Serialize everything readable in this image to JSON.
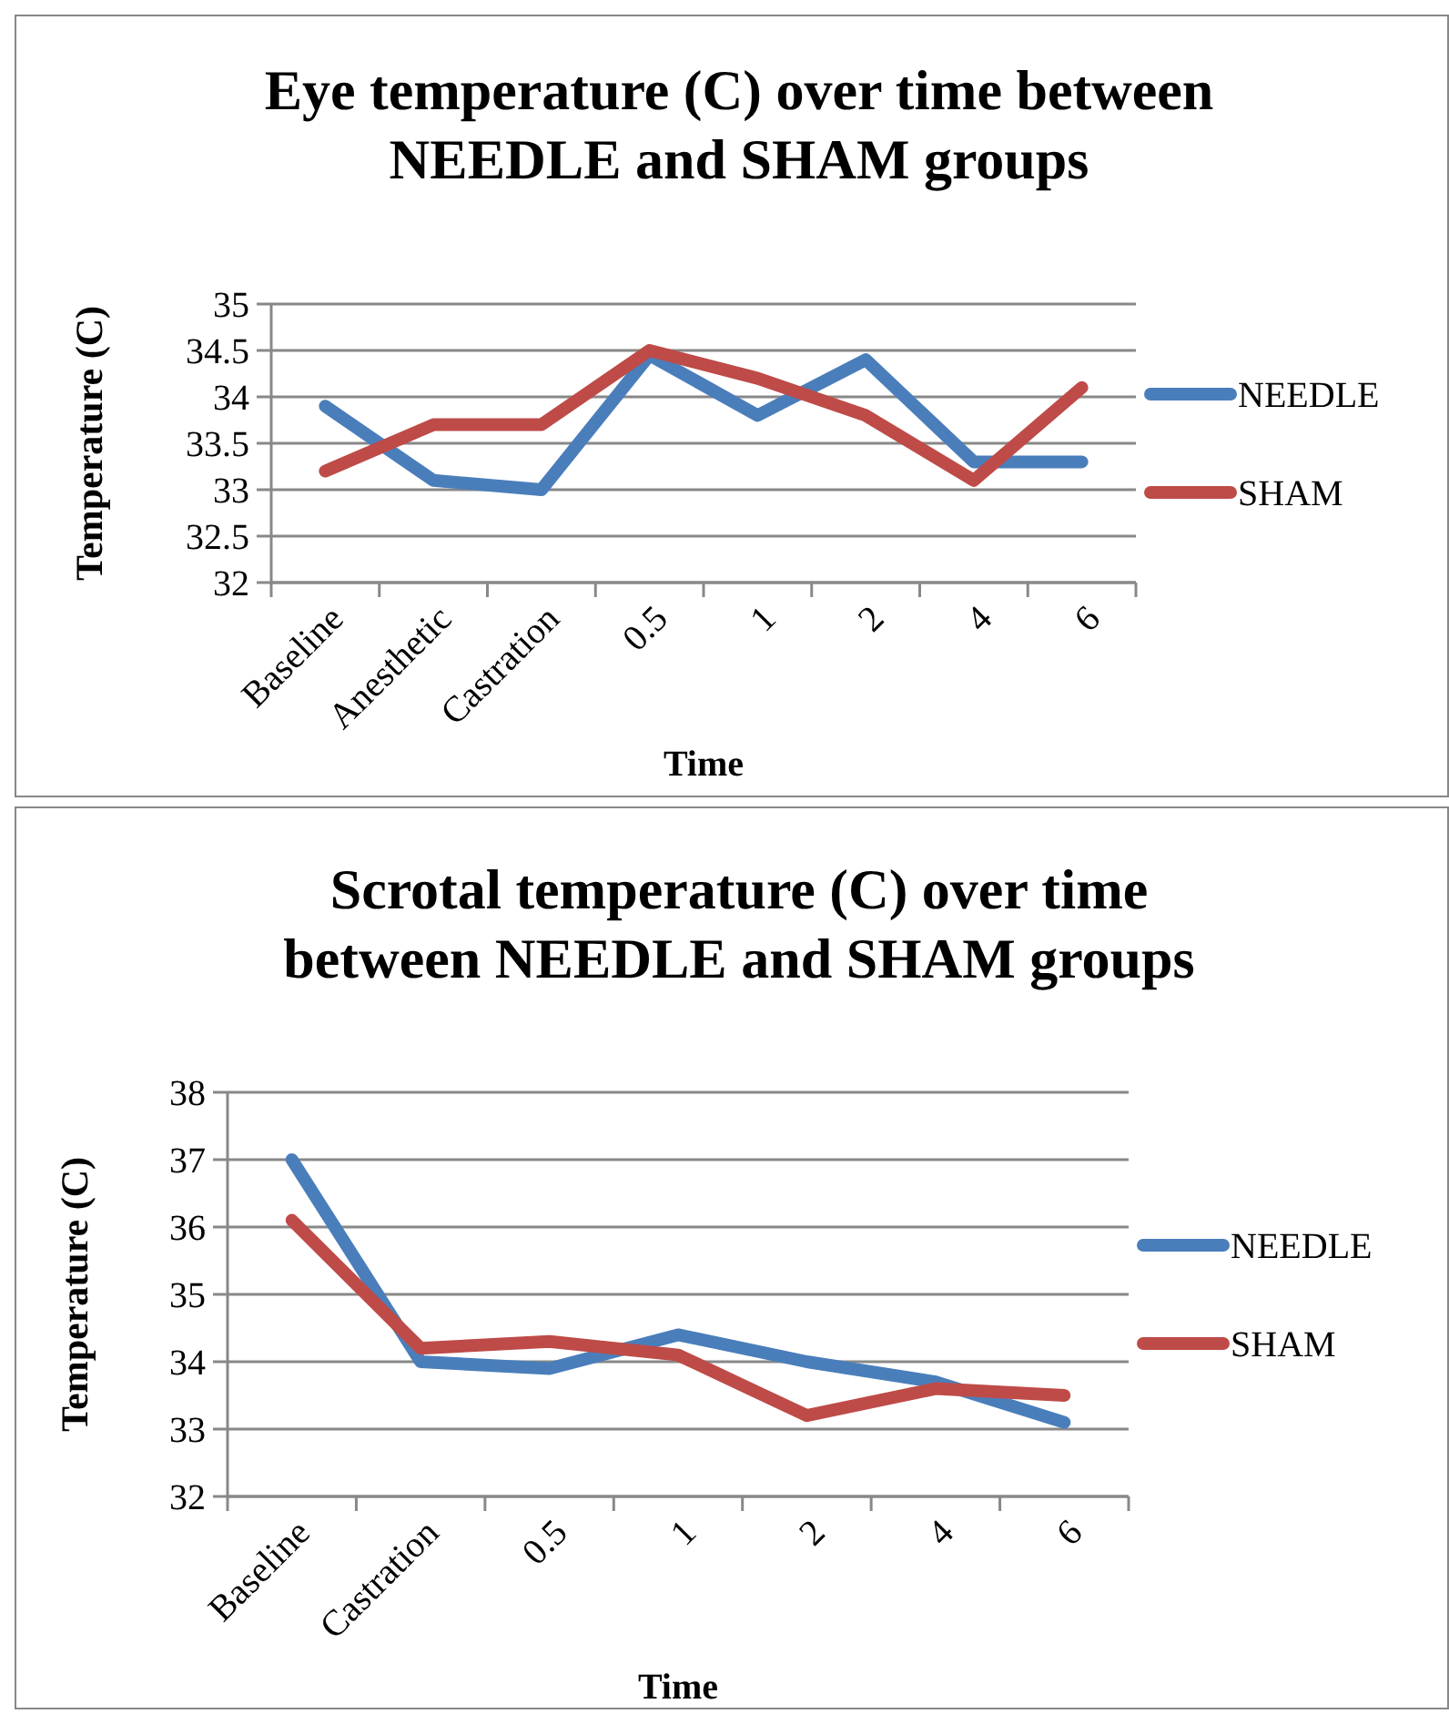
{
  "chart_data": [
    {
      "type": "line",
      "title": "Eye temperature (C) over time between NEEDLE and SHAM groups",
      "xlabel": "Time",
      "ylabel": "Temperature (C)",
      "categories": [
        "Baseline",
        "Anesthetic",
        "Castration",
        "0.5",
        "1",
        "2",
        "4",
        "6"
      ],
      "series": [
        {
          "name": "NEEDLE",
          "color": "#4a7ebb",
          "values": [
            33.9,
            33.1,
            33.0,
            34.45,
            33.8,
            34.4,
            33.3,
            33.3
          ]
        },
        {
          "name": "SHAM",
          "color": "#be4b48",
          "values": [
            33.2,
            33.7,
            33.7,
            34.5,
            34.2,
            33.8,
            33.1,
            34.1
          ]
        }
      ],
      "ylim": [
        32,
        35
      ],
      "yticks": [
        32,
        32.5,
        33,
        33.5,
        34,
        34.5,
        35
      ],
      "grid": "y",
      "legend": "right"
    },
    {
      "type": "line",
      "title": "Scrotal temperature (C) over time between NEEDLE and SHAM groups",
      "xlabel": "Time",
      "ylabel": "Temperature (C)",
      "categories": [
        "Baseline",
        "Castration",
        "0.5",
        "1",
        "2",
        "4",
        "6"
      ],
      "series": [
        {
          "name": "NEEDLE",
          "color": "#4a7ebb",
          "values": [
            37.0,
            34.0,
            33.9,
            34.4,
            34.0,
            33.7,
            33.1
          ]
        },
        {
          "name": "SHAM",
          "color": "#be4b48",
          "values": [
            36.1,
            34.2,
            34.3,
            34.1,
            33.2,
            33.6,
            33.5
          ]
        }
      ],
      "ylim": [
        32,
        38
      ],
      "yticks": [
        32,
        33,
        34,
        35,
        36,
        37,
        38
      ],
      "grid": "y",
      "legend": "right"
    }
  ]
}
